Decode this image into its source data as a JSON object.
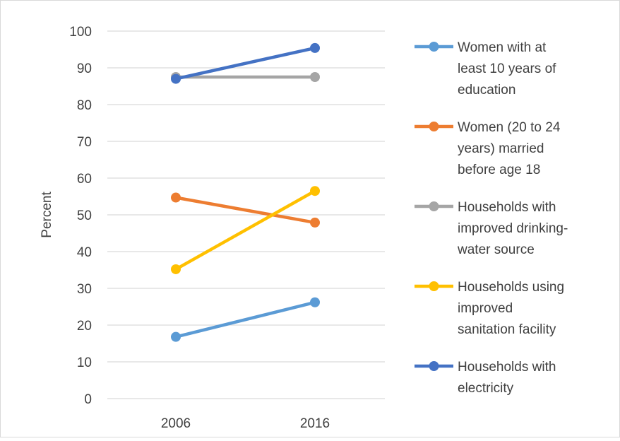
{
  "chart_data": {
    "type": "line",
    "title": "",
    "xlabel": "",
    "ylabel": "Percent",
    "categories": [
      "2006",
      "2016"
    ],
    "ylim": [
      0,
      100
    ],
    "yticks": [
      0,
      10,
      20,
      30,
      40,
      50,
      60,
      70,
      80,
      90,
      100
    ],
    "grid": true,
    "legend_position": "right",
    "series": [
      {
        "name": "Women with at least 10 years of education",
        "legend_lines": [
          "Women with at",
          "least 10 years of",
          "education"
        ],
        "color": "#5b9bd5",
        "values": [
          16.8,
          26.2
        ]
      },
      {
        "name": "Women (20 to 24 years) married before age 18",
        "legend_lines": [
          "Women (20 to 24",
          "years) married",
          "before age 18"
        ],
        "color": "#ed7d31",
        "values": [
          54.7,
          47.9
        ]
      },
      {
        "name": "Households with improved drinking-water source",
        "legend_lines": [
          "Households with",
          "improved drinking-",
          "water source"
        ],
        "color": "#a5a5a5",
        "values": [
          87.5,
          87.5
        ]
      },
      {
        "name": "Households using improved sanitation facility",
        "legend_lines": [
          "Households using",
          "improved",
          "sanitation facility"
        ],
        "color": "#ffc000",
        "values": [
          35.2,
          56.5
        ]
      },
      {
        "name": "Households with electricity",
        "legend_lines": [
          "Households with",
          "electricity"
        ],
        "color": "#4472c4",
        "values": [
          87.0,
          95.4
        ]
      }
    ]
  }
}
